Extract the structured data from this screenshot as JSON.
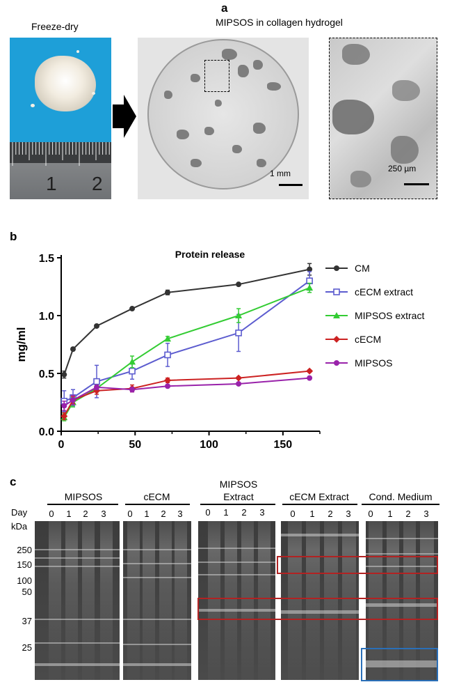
{
  "panel_a": {
    "letter": "a",
    "left_caption": "Freeze-dry",
    "right_caption": "MIPSOS in collagen hydrogel",
    "ruler_numbers": [
      "1",
      "2"
    ],
    "scale_1": "1 mm",
    "scale_2": "250 µm"
  },
  "panel_b": {
    "letter": "b"
  },
  "chart_data": {
    "type": "line",
    "title": "Protein release",
    "xlabel": "",
    "ylabel": "mg/ml",
    "xlim": [
      0,
      175
    ],
    "ylim": [
      0,
      1.5
    ],
    "xticks": [
      "0",
      "50",
      "100",
      "150"
    ],
    "yticks": [
      "0.0",
      "0.5",
      "1.0",
      "1.5"
    ],
    "legend_position": "right",
    "series": [
      {
        "name": "CM",
        "color": "#333333",
        "marker": "circle",
        "x": [
          2,
          8,
          24,
          48,
          72,
          120,
          168
        ],
        "y": [
          0.49,
          0.71,
          0.91,
          1.06,
          1.2,
          1.27,
          1.4
        ],
        "err": [
          0.03,
          0.01,
          0.01,
          0.01,
          0.02,
          0.01,
          0.05
        ]
      },
      {
        "name": "cECM extract",
        "color": "#5c5ccf",
        "marker": "square-open",
        "x": [
          2,
          8,
          24,
          48,
          72,
          120,
          168
        ],
        "y": [
          0.26,
          0.29,
          0.43,
          0.52,
          0.66,
          0.85,
          1.3
        ],
        "err": [
          0.09,
          0.07,
          0.14,
          0.07,
          0.1,
          0.16,
          0.08
        ]
      },
      {
        "name": "MIPSOS extract",
        "color": "#33cc33",
        "marker": "triangle",
        "x": [
          2,
          8,
          24,
          48,
          72,
          120,
          168
        ],
        "y": [
          0.12,
          0.25,
          0.37,
          0.6,
          0.8,
          1.0,
          1.24
        ],
        "err": [
          0.03,
          0.04,
          0.03,
          0.05,
          0.02,
          0.06,
          0.04
        ]
      },
      {
        "name": "cECM",
        "color": "#cc2222",
        "marker": "diamond",
        "x": [
          2,
          8,
          24,
          48,
          72,
          120,
          168
        ],
        "y": [
          0.13,
          0.27,
          0.35,
          0.37,
          0.44,
          0.46,
          0.52
        ],
        "err": [
          0.03,
          0.03,
          0.03,
          0.03,
          0.02,
          0.01,
          0.01
        ]
      },
      {
        "name": "MIPSOS",
        "color": "#9922aa",
        "marker": "circle",
        "x": [
          2,
          8,
          24,
          48,
          72,
          120,
          168
        ],
        "y": [
          0.22,
          0.27,
          0.38,
          0.36,
          0.39,
          0.41,
          0.46
        ],
        "err": [
          0.04,
          0.04,
          0.02,
          0.02,
          0.01,
          0.01,
          0.01
        ]
      }
    ]
  },
  "panel_c": {
    "letter": "c",
    "day_label": "Day",
    "kda_label": "kDa",
    "groups": [
      {
        "title": "MIPSOS",
        "days": [
          "0",
          "1",
          "2",
          "3"
        ]
      },
      {
        "title": "cECM",
        "days": [
          "0",
          "1",
          "2",
          "3"
        ]
      },
      {
        "title": "MIPSOS\nExtract",
        "days": [
          "0",
          "1",
          "2",
          "3"
        ]
      },
      {
        "title": "cECM Extract",
        "days": [
          "0",
          "1",
          "2",
          "3"
        ]
      },
      {
        "title": "Cond. Medium",
        "days": [
          "0",
          "1",
          "2",
          "3"
        ]
      }
    ],
    "markers": [
      "250",
      "150",
      "100",
      "50",
      "37",
      "25"
    ],
    "box_colors": {
      "red": "#b22222",
      "blue": "#2a6fb8"
    }
  }
}
